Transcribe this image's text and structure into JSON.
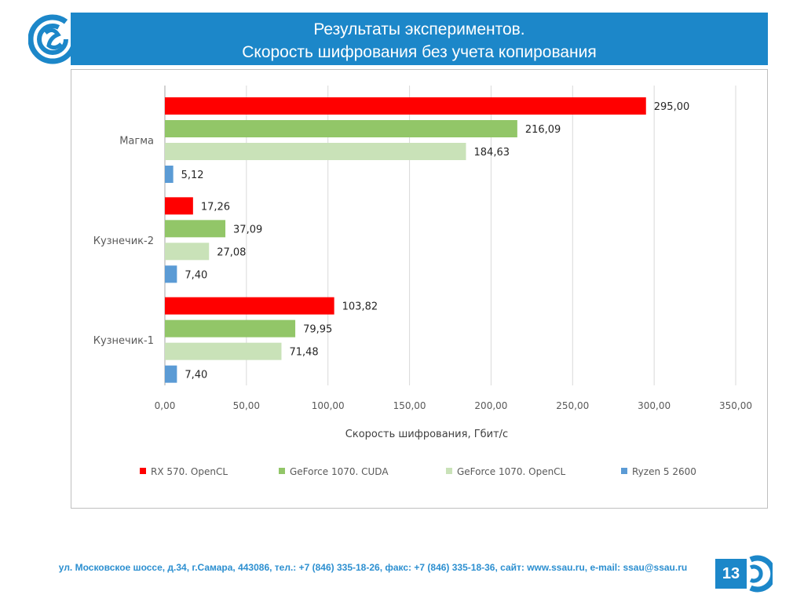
{
  "slide": {
    "title_line1": "Результаты экспериментов.",
    "title_line2": "Скорость шифрования без учета копирования",
    "footer": "ул. Московское шоссе, д.34, г.Самара, 443086, тел.: +7 (846) 335-18-26, факс: +7 (846) 335-18-36, сайт: www.ssau.ru, e-mail: ssau@ssau.ru",
    "page_number": "13"
  },
  "colors": {
    "brand": "#1c87c9",
    "series": [
      "#ff0000",
      "#92c668",
      "#c9e2b8",
      "#5b9bd5"
    ]
  },
  "chart_data": {
    "type": "bar",
    "orientation": "horizontal",
    "title": "",
    "xlabel": "Скорость шифрования, Гбит/с",
    "ylabel": "",
    "xlim": [
      0,
      350
    ],
    "xticks": [
      "0,00",
      "50,00",
      "100,00",
      "150,00",
      "200,00",
      "250,00",
      "300,00",
      "350,00"
    ],
    "xtick_values": [
      0,
      50,
      100,
      150,
      200,
      250,
      300,
      350
    ],
    "grid": "vertical",
    "legend_position": "bottom",
    "categories": [
      "Магма",
      "Кузнечик-2",
      "Кузнечик-1"
    ],
    "series": [
      {
        "name": "RX 570. OpenCL",
        "values": [
          295.0,
          17.26,
          103.82
        ],
        "labels": [
          "295,00",
          "17,26",
          "103,82"
        ]
      },
      {
        "name": "GeForce 1070. CUDA",
        "values": [
          216.09,
          37.09,
          79.95
        ],
        "labels": [
          "216,09",
          "37,09",
          "79,95"
        ]
      },
      {
        "name": "GeForce 1070. OpenCL",
        "values": [
          184.63,
          27.08,
          71.48
        ],
        "labels": [
          "184,63",
          "27,08",
          "71,48"
        ]
      },
      {
        "name": "Ryzen 5 2600",
        "values": [
          5.12,
          7.4,
          7.4
        ],
        "labels": [
          "5,12",
          "7,40",
          "7,40"
        ]
      }
    ]
  }
}
